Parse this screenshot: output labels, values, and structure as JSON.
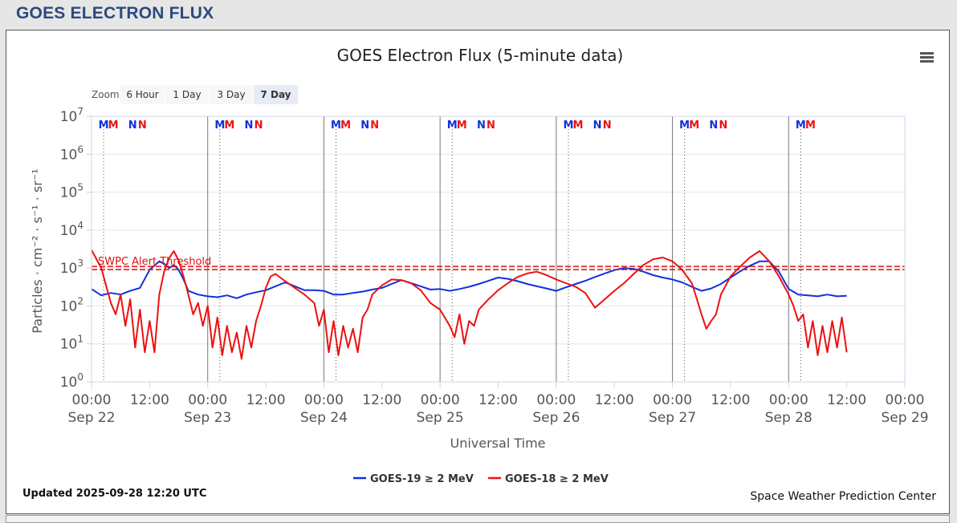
{
  "page": {
    "header": "GOES ELECTRON FLUX",
    "updated": "Updated 2025-09-28 12:20 UTC",
    "credit": "Space Weather Prediction Center",
    "menu_icon": "hamburger-menu-icon"
  },
  "zoom": {
    "label": "Zoom",
    "buttons": [
      "6 Hour",
      "1 Day",
      "3 Day",
      "7 Day"
    ],
    "selected": "7 Day"
  },
  "colors": {
    "goes19": "#1030dd",
    "goes18": "#ee1010",
    "threshold": "#dd1111",
    "marker_m": "#1030dd",
    "marker_n": "#ee1010",
    "header_text": "#2c4a7c"
  },
  "chart_data": {
    "type": "line",
    "title": "GOES Electron Flux (5-minute data)",
    "xlabel": "Universal Time",
    "ylabel": "Particles · cm⁻² · s⁻¹ · sr⁻¹",
    "y_scale": "log",
    "ylim": [
      1,
      10000000
    ],
    "y_ticks": [
      "10^0",
      "10^1",
      "10^2",
      "10^3",
      "10^4",
      "10^5",
      "10^6",
      "10^7"
    ],
    "x_range_hours": [
      0,
      168
    ],
    "x_ticks": [
      {
        "time": "00:00",
        "date": "Sep 22"
      },
      {
        "time": "12:00",
        "date": ""
      },
      {
        "time": "00:00",
        "date": "Sep 23"
      },
      {
        "time": "12:00",
        "date": ""
      },
      {
        "time": "00:00",
        "date": "Sep 24"
      },
      {
        "time": "12:00",
        "date": ""
      },
      {
        "time": "00:00",
        "date": "Sep 25"
      },
      {
        "time": "12:00",
        "date": ""
      },
      {
        "time": "00:00",
        "date": "Sep 26"
      },
      {
        "time": "12:00",
        "date": ""
      },
      {
        "time": "00:00",
        "date": "Sep 27"
      },
      {
        "time": "12:00",
        "date": ""
      },
      {
        "time": "00:00",
        "date": "Sep 28"
      },
      {
        "time": "12:00",
        "date": ""
      },
      {
        "time": "00:00",
        "date": "Sep 29"
      }
    ],
    "threshold": {
      "label": "SWPC Alert Threshold",
      "value": 1000
    },
    "markers": [
      {
        "label": "M",
        "series": "GOES-19",
        "hour": 2.5
      },
      {
        "label": "M",
        "series": "GOES-18",
        "hour": 4.5
      },
      {
        "label": "N",
        "series": "GOES-19",
        "hour": 8.5
      },
      {
        "label": "N",
        "series": "GOES-18",
        "hour": 10.5
      },
      {
        "label": "M",
        "series": "GOES-19",
        "hour": 26.5
      },
      {
        "label": "M",
        "series": "GOES-18",
        "hour": 28.5
      },
      {
        "label": "N",
        "series": "GOES-19",
        "hour": 32.5
      },
      {
        "label": "N",
        "series": "GOES-18",
        "hour": 34.5
      },
      {
        "label": "M",
        "series": "GOES-19",
        "hour": 50.5
      },
      {
        "label": "M",
        "series": "GOES-18",
        "hour": 52.5
      },
      {
        "label": "N",
        "series": "GOES-19",
        "hour": 56.5
      },
      {
        "label": "N",
        "series": "GOES-18",
        "hour": 58.5
      },
      {
        "label": "M",
        "series": "GOES-19",
        "hour": 74.5
      },
      {
        "label": "M",
        "series": "GOES-18",
        "hour": 76.5
      },
      {
        "label": "N",
        "series": "GOES-19",
        "hour": 80.5
      },
      {
        "label": "N",
        "series": "GOES-18",
        "hour": 82.5
      },
      {
        "label": "M",
        "series": "GOES-19",
        "hour": 98.5
      },
      {
        "label": "M",
        "series": "GOES-18",
        "hour": 100.5
      },
      {
        "label": "N",
        "series": "GOES-19",
        "hour": 104.5
      },
      {
        "label": "N",
        "series": "GOES-18",
        "hour": 106.5
      },
      {
        "label": "M",
        "series": "GOES-19",
        "hour": 122.5
      },
      {
        "label": "M",
        "series": "GOES-18",
        "hour": 124.5
      },
      {
        "label": "N",
        "series": "GOES-19",
        "hour": 128.5
      },
      {
        "label": "N",
        "series": "GOES-18",
        "hour": 130.5
      },
      {
        "label": "M",
        "series": "GOES-19",
        "hour": 146.5
      },
      {
        "label": "M",
        "series": "GOES-18",
        "hour": 148.5
      }
    ],
    "dotted_lines_hours": [
      2.5,
      26.5,
      50.5,
      74.5,
      98.5,
      122.5,
      146.5
    ],
    "series": [
      {
        "name": "GOES-19 ≥ 2 MeV",
        "color": "#1030dd",
        "x": [
          0,
          2,
          4,
          6,
          8,
          10,
          12,
          14,
          15,
          16,
          17,
          18,
          19,
          20,
          22,
          24,
          26,
          28,
          30,
          32,
          34,
          36,
          38,
          40,
          42,
          44,
          46,
          48,
          50,
          52,
          54,
          56,
          58,
          60,
          62,
          64,
          66,
          68,
          70,
          72,
          74,
          76,
          78,
          80,
          82,
          84,
          86,
          88,
          90,
          92,
          94,
          96,
          98,
          100,
          102,
          104,
          106,
          108,
          110,
          112,
          114,
          116,
          118,
          120,
          122,
          124,
          126,
          128,
          130,
          132,
          134,
          136,
          138,
          140,
          142,
          144,
          146,
          148,
          150,
          152,
          154,
          156
        ],
        "y": [
          280,
          190,
          220,
          200,
          250,
          300,
          900,
          1500,
          1300,
          1000,
          1200,
          900,
          500,
          250,
          200,
          180,
          170,
          190,
          160,
          200,
          230,
          260,
          330,
          420,
          330,
          260,
          260,
          250,
          200,
          200,
          220,
          240,
          270,
          300,
          380,
          480,
          400,
          330,
          270,
          280,
          250,
          280,
          320,
          380,
          460,
          560,
          520,
          450,
          380,
          330,
          290,
          250,
          310,
          380,
          460,
          580,
          720,
          880,
          1000,
          950,
          800,
          650,
          560,
          500,
          420,
          320,
          250,
          290,
          380,
          560,
          820,
          1150,
          1500,
          1500,
          800,
          280,
          200,
          190,
          180,
          200,
          180,
          185
        ]
      },
      {
        "name": "GOES-18 ≥ 2 MeV",
        "color": "#ee1010",
        "x": [
          0,
          2,
          4,
          5,
          6,
          7,
          8,
          9,
          10,
          11,
          12,
          13,
          14,
          15,
          16,
          17,
          18,
          19,
          20,
          21,
          22,
          23,
          24,
          25,
          26,
          27,
          28,
          29,
          30,
          31,
          32,
          33,
          34,
          35,
          36,
          37,
          38,
          40,
          42,
          44,
          46,
          47,
          48,
          49,
          50,
          51,
          52,
          53,
          54,
          55,
          56,
          57,
          58,
          60,
          62,
          64,
          66,
          68,
          70,
          72,
          74,
          75,
          76,
          77,
          78,
          79,
          80,
          82,
          84,
          86,
          88,
          90,
          92,
          94,
          96,
          98,
          100,
          102,
          104,
          106,
          108,
          110,
          112,
          114,
          116,
          118,
          120,
          122,
          124,
          125,
          126,
          127,
          128,
          129,
          130,
          132,
          134,
          136,
          138,
          140,
          142,
          144,
          145,
          146,
          147,
          148,
          149,
          150,
          151,
          152,
          153,
          154,
          155,
          156
        ],
        "y": [
          3000,
          1000,
          120,
          60,
          200,
          30,
          150,
          8,
          80,
          6,
          40,
          6,
          200,
          800,
          1800,
          2800,
          1600,
          600,
          200,
          60,
          120,
          30,
          100,
          8,
          50,
          5,
          30,
          6,
          20,
          4,
          30,
          8,
          40,
          100,
          300,
          600,
          700,
          450,
          300,
          200,
          120,
          30,
          80,
          6,
          40,
          5,
          30,
          8,
          25,
          6,
          50,
          80,
          200,
          350,
          500,
          480,
          400,
          260,
          120,
          80,
          30,
          15,
          60,
          10,
          40,
          30,
          80,
          150,
          260,
          400,
          580,
          720,
          800,
          650,
          500,
          400,
          320,
          220,
          90,
          150,
          250,
          400,
          700,
          1200,
          1700,
          1900,
          1500,
          900,
          400,
          160,
          60,
          25,
          40,
          60,
          200,
          600,
          1100,
          1900,
          2800,
          1500,
          600,
          200,
          100,
          40,
          60,
          8,
          40,
          5,
          30,
          6,
          40,
          8,
          50,
          6
        ]
      }
    ]
  }
}
